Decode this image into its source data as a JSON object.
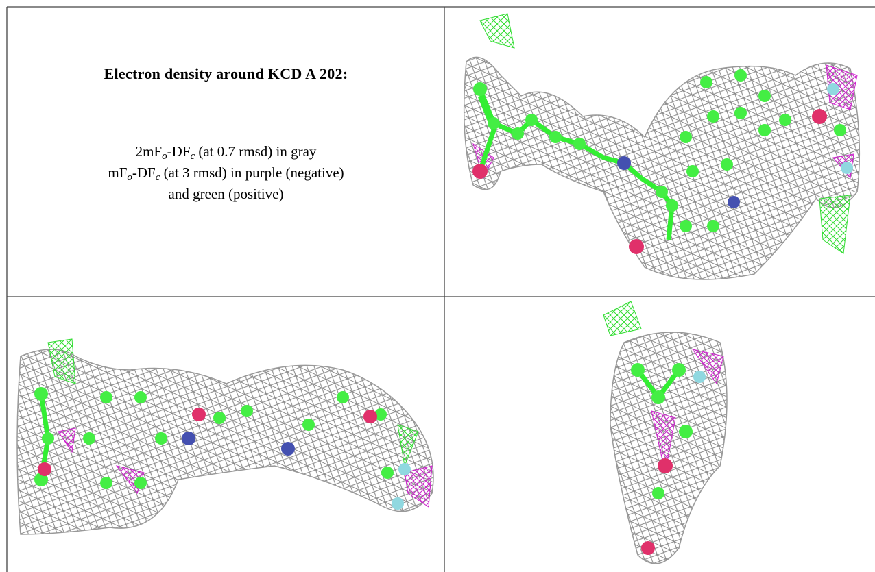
{
  "caption": {
    "title": "Electron density around KCD A 202:",
    "lines": [
      [
        {
          "text": "2mF"
        },
        {
          "sub": "o"
        },
        {
          "text": "-DF"
        },
        {
          "sub": "c"
        },
        {
          "text": " (at 0.7 rmsd) in gray"
        }
      ],
      [
        {
          "text": "mF"
        },
        {
          "sub": "o"
        },
        {
          "text": "-DF"
        },
        {
          "sub": "c"
        },
        {
          "text": " (at 3 rmsd) in purple (negative)"
        }
      ],
      [
        {
          "text": "and green (positive)"
        }
      ]
    ]
  }
}
